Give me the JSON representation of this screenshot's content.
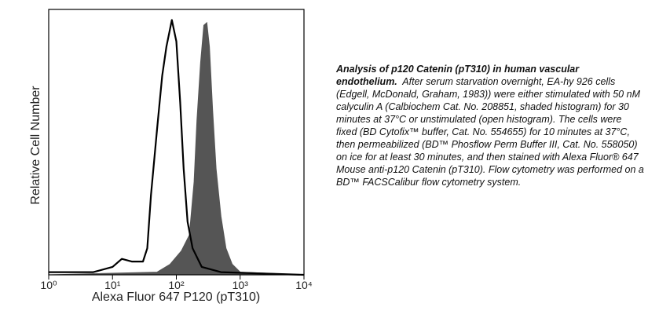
{
  "chart_data": {
    "type": "histogram-overlay",
    "x_label": "Alexa Fluor 647 P120 (pT310)",
    "y_label": "Relative Cell Number",
    "xscale": "log",
    "xlim": [
      1,
      10000
    ],
    "ylim": [
      0,
      100
    ],
    "xticks": [
      {
        "value": 1,
        "label": "10⁰"
      },
      {
        "value": 10,
        "label": "10¹"
      },
      {
        "value": 100,
        "label": "10²"
      },
      {
        "value": 1000,
        "label": "10³"
      },
      {
        "value": 10000,
        "label": "10⁴"
      }
    ],
    "series": [
      {
        "color": "#555555",
        "filled": true,
        "x": [
          1,
          50,
          80,
          120,
          160,
          190,
          210,
          240,
          270,
          300,
          330,
          370,
          420,
          500,
          600,
          750,
          1000,
          10000
        ],
        "values": [
          0,
          1,
          4,
          9,
          15,
          35,
          58,
          80,
          94,
          95,
          86,
          62,
          40,
          22,
          10,
          4,
          1,
          0
        ]
      },
      {
        "color": "#000000",
        "filled": false,
        "x": [
          1,
          5,
          10,
          14,
          20,
          30,
          35,
          40,
          50,
          60,
          70,
          85,
          100,
          115,
          130,
          150,
          180,
          250,
          500,
          10000
        ],
        "values": [
          1,
          1,
          3,
          6,
          5,
          5,
          10,
          30,
          55,
          75,
          86,
          96,
          88,
          65,
          40,
          20,
          10,
          3,
          1,
          0
        ]
      }
    ],
    "caption": {
      "title": "Analysis of p120 Catenin (pT310) in human vascular endothelium.",
      "text": "After serum starvation overnight, EA-hy 926 cells (Edgell, McDonald, Graham, 1983)) were either stimulated with 50 nM calyculin A (Calbiochem Cat. No. 208851, shaded histogram) for 30 minutes at 37°C or unstimulated (open histogram).  The cells were fixed (BD Cytofix™ buffer, Cat. No. 554655) for 10 minutes at 37°C, then permeabilized (BD™ Phosflow Perm Buffer III, Cat. No. 558050) on ice for at least 30 minutes, and then stained with Alexa Fluor® 647 Mouse anti-p120 Catenin (pT310).  Flow cytometry was performed on a BD™ FACSCalibur flow cytometry system."
    }
  }
}
